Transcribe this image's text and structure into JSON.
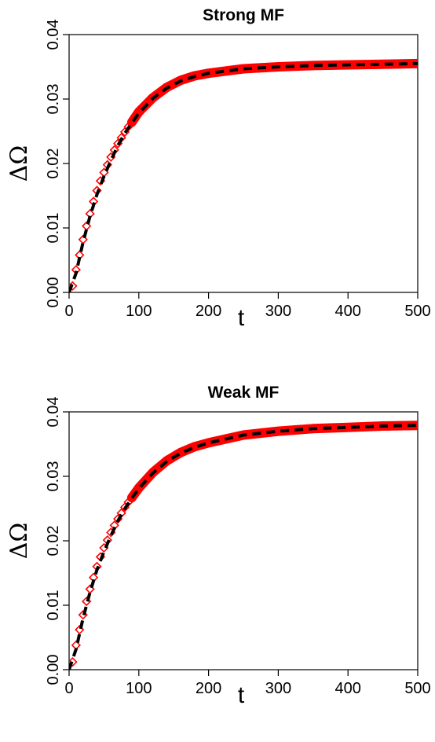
{
  "chart_data": [
    {
      "type": "scatter",
      "title": "Strong MF",
      "xlabel": "t",
      "ylabel": "ΔΩ",
      "xlim": [
        0,
        500
      ],
      "ylim": [
        0,
        0.04
      ],
      "x_ticks": [
        "0",
        "100",
        "200",
        "300",
        "400",
        "500"
      ],
      "y_ticks": [
        "0.00",
        "0.01",
        "0.02",
        "0.03",
        "0.04"
      ],
      "grid": false,
      "legend": "none",
      "marker_color": "#ff0000",
      "curve_color": "#000000",
      "series": [
        {
          "style": "points",
          "marker": "diamond",
          "x": [
            5,
            10,
            15,
            20,
            25,
            30,
            35,
            40,
            45,
            50,
            55,
            60,
            65,
            70,
            75,
            80,
            85,
            90
          ],
          "y": [
            0.001,
            0.0035,
            0.0058,
            0.0082,
            0.0103,
            0.0122,
            0.0141,
            0.0158,
            0.0173,
            0.0186,
            0.0198,
            0.021,
            0.0221,
            0.0231,
            0.024,
            0.0249,
            0.0257,
            0.0264
          ]
        },
        {
          "style": "band",
          "x": [
            90,
            100,
            120,
            140,
            160,
            180,
            200,
            250,
            300,
            350,
            400,
            450,
            500
          ],
          "y": [
            0.0264,
            0.028,
            0.0302,
            0.0318,
            0.0329,
            0.0336,
            0.034,
            0.0347,
            0.035,
            0.0352,
            0.0353,
            0.0354,
            0.0355
          ]
        },
        {
          "style": "dashed-line",
          "x": [
            0,
            10,
            20,
            30,
            40,
            50,
            60,
            70,
            80,
            90,
            100,
            120,
            140,
            160,
            180,
            200,
            250,
            300,
            350,
            400,
            450,
            500
          ],
          "y": [
            0.0,
            0.003,
            0.0078,
            0.0118,
            0.0152,
            0.018,
            0.0205,
            0.0228,
            0.0247,
            0.0263,
            0.0278,
            0.0301,
            0.0317,
            0.0328,
            0.0335,
            0.034,
            0.0347,
            0.035,
            0.0352,
            0.0353,
            0.0354,
            0.0355
          ]
        }
      ]
    },
    {
      "type": "scatter",
      "title": "Weak MF",
      "xlabel": "t",
      "ylabel": "ΔΩ",
      "xlim": [
        0,
        500
      ],
      "ylim": [
        0,
        0.04
      ],
      "x_ticks": [
        "0",
        "100",
        "200",
        "300",
        "400",
        "500"
      ],
      "y_ticks": [
        "0.00",
        "0.01",
        "0.02",
        "0.03",
        "0.04"
      ],
      "grid": false,
      "legend": "none",
      "marker_color": "#ff0000",
      "curve_color": "#000000",
      "series": [
        {
          "style": "points",
          "marker": "diamond",
          "x": [
            5,
            10,
            15,
            20,
            25,
            30,
            35,
            40,
            45,
            50,
            55,
            60,
            65,
            70,
            75,
            80,
            85,
            90
          ],
          "y": [
            0.0012,
            0.0038,
            0.0062,
            0.0085,
            0.0106,
            0.0125,
            0.0143,
            0.016,
            0.0175,
            0.0189,
            0.0201,
            0.0213,
            0.0224,
            0.0234,
            0.0243,
            0.0252,
            0.026,
            0.0267
          ]
        },
        {
          "style": "band",
          "x": [
            90,
            100,
            120,
            140,
            160,
            180,
            200,
            250,
            300,
            350,
            400,
            450,
            500
          ],
          "y": [
            0.0267,
            0.0282,
            0.0306,
            0.0324,
            0.0337,
            0.0346,
            0.0352,
            0.0364,
            0.037,
            0.0374,
            0.0376,
            0.0378,
            0.0379
          ]
        },
        {
          "style": "dashed-line",
          "x": [
            0,
            10,
            20,
            30,
            40,
            50,
            60,
            70,
            80,
            90,
            100,
            120,
            140,
            160,
            180,
            200,
            250,
            300,
            350,
            400,
            450,
            500
          ],
          "y": [
            0.0,
            0.0032,
            0.008,
            0.012,
            0.0155,
            0.0183,
            0.0208,
            0.0231,
            0.025,
            0.0266,
            0.0281,
            0.0305,
            0.0323,
            0.0336,
            0.0345,
            0.0352,
            0.0364,
            0.037,
            0.0374,
            0.0376,
            0.0378,
            0.0379
          ]
        }
      ]
    }
  ]
}
